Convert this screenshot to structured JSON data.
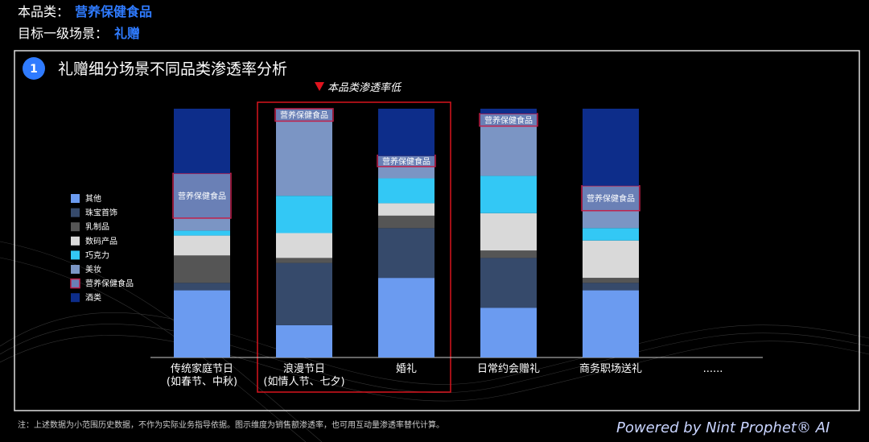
{
  "header": {
    "category_label": "本品类：",
    "category": "营养保健食品",
    "scene_label": "目标一级场景：",
    "scene": "礼赠"
  },
  "section": {
    "number": "1",
    "title": "礼赠细分场景不同品类渗透率分析"
  },
  "chart_data": {
    "type": "stacked_bar",
    "annotation": "本品类渗透率低",
    "categories": [
      "传统家庭节日\n(如春节、中秋)",
      "浪漫节日\n(如情人节、七夕)",
      "婚礼",
      "日常约会赠礼",
      "商务职场送礼",
      "......"
    ],
    "series": [
      {
        "name": "其他",
        "color": "#6b9bf0",
        "values": [
          27,
          13,
          32,
          20,
          27,
          null
        ]
      },
      {
        "name": "珠宝首饰",
        "color": "#364a6b",
        "values": [
          3,
          25,
          20,
          20,
          3,
          null
        ]
      },
      {
        "name": "乳制品",
        "color": "#555555",
        "values": [
          11,
          2,
          5,
          3,
          2,
          null
        ]
      },
      {
        "name": "数码产品",
        "color": "#d9d9d9",
        "values": [
          8,
          10,
          5,
          15,
          15,
          null
        ]
      },
      {
        "name": "巧克力",
        "color": "#33c8f5",
        "values": [
          2,
          15,
          10,
          15,
          5,
          null
        ]
      },
      {
        "name": "美妆",
        "color": "#7b95c4",
        "values": [
          5,
          30,
          5,
          20,
          7,
          null
        ]
      },
      {
        "name": "营养保健食品",
        "color": "#6a80b6",
        "values": [
          18,
          5,
          4,
          5,
          10,
          null
        ]
      },
      {
        "name": "酒类",
        "color": "#0d2d8a",
        "values": [
          26,
          0,
          19,
          2,
          31,
          null
        ]
      }
    ],
    "highlight_series": "营养保健食品"
  },
  "footer": {
    "note": "注：上述数据为小范围历史数据，不作为实际业务指导依据。图示维度为销售额渗透率，也可用互动量渗透率替代计算。",
    "powered": "Powered by Nint Prophet® AI"
  }
}
